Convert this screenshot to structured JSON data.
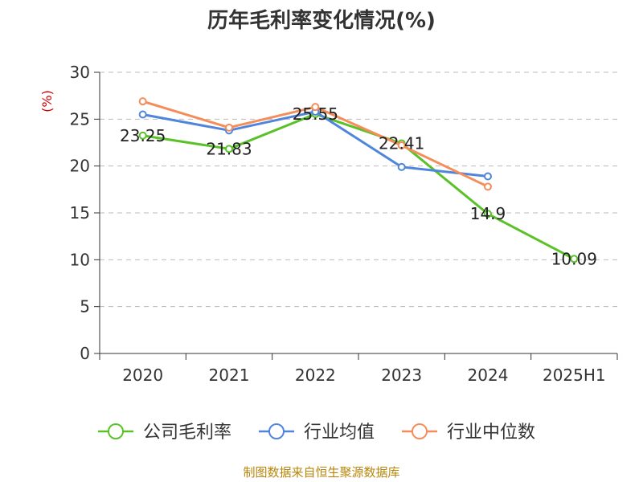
{
  "chart_data": {
    "type": "line",
    "title": "历年毛利率变化情况(%)",
    "ylabel": "(%)",
    "xlabel": "",
    "categories": [
      "2020",
      "2021",
      "2022",
      "2023",
      "2024",
      "2025H1"
    ],
    "ylim": [
      0,
      30
    ],
    "yticks": [
      0,
      5,
      10,
      15,
      20,
      25,
      30
    ],
    "grid": true,
    "legend": "bottom",
    "series": [
      {
        "name": "公司毛利率",
        "color": "#5ac228",
        "values": [
          23.25,
          21.83,
          25.55,
          22.41,
          14.9,
          10.09
        ],
        "labels": [
          "23.25",
          "21.83",
          "25.55",
          "22.41",
          "14.9",
          "10.09"
        ]
      },
      {
        "name": "行业均值",
        "color": "#4f86db",
        "values": [
          25.5,
          23.8,
          25.8,
          19.9,
          18.9,
          null
        ]
      },
      {
        "name": "行业中位数",
        "color": "#f58d5b",
        "values": [
          26.9,
          24.1,
          26.3,
          22.2,
          17.8,
          null
        ]
      }
    ]
  },
  "footer": {
    "source": "制图数据来自恒生聚源数据库"
  },
  "colors": {
    "title": "#333333",
    "axis": "#333333",
    "grid": "#bbbbbb",
    "ylabel": "#cc0000",
    "source": "#b8860b"
  }
}
